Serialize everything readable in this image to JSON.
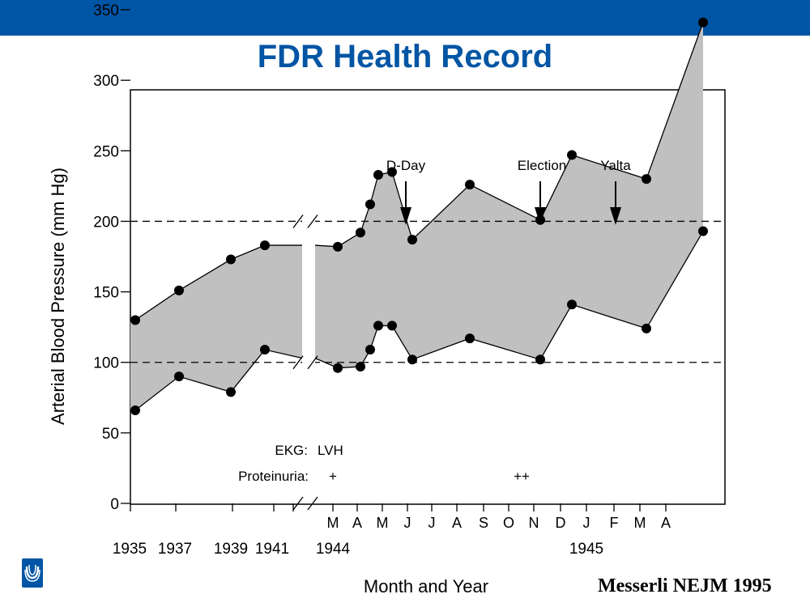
{
  "slide": {
    "title": "FDR Health Record",
    "citation": "Messerli NEJM 1995",
    "bar_color": "#0055a4",
    "title_color": "#0055a4"
  },
  "logo": {
    "icon": "university-logo-icon",
    "color": "#0055a4"
  },
  "chart_data": {
    "type": "area",
    "title": "",
    "xlabel": "Month and Year",
    "ylabel": "Arterial Blood Pressure (mm Hg)",
    "ylim": [
      0,
      350
    ],
    "yticks": [
      0,
      50,
      100,
      150,
      200,
      250,
      300,
      350
    ],
    "axis_break": true,
    "x_tick_labels": [
      "M",
      "A",
      "M",
      "J",
      "J",
      "A",
      "S",
      "O",
      "N",
      "D",
      "J",
      "F",
      "M",
      "A"
    ],
    "year_labels": [
      "1935",
      "1937",
      "1939",
      "1941",
      "1944",
      "1945"
    ],
    "reference_lines": [
      100,
      200
    ],
    "fill_color": "#c0c0c0",
    "annotations": [
      "D-Day",
      "Election",
      "Yalta"
    ],
    "rows": [
      {
        "label": "EKG:",
        "value": "LVH"
      },
      {
        "label": "Proteinuria:",
        "value": "+"
      },
      {
        "label": "",
        "value": "++"
      }
    ],
    "series": [
      {
        "values": [
          130,
          151,
          173,
          183,
          182,
          192,
          212,
          233,
          235,
          187,
          226,
          201,
          247,
          230,
          341
        ]
      },
      {
        "values": [
          66,
          90,
          79,
          109,
          96,
          97,
          109,
          126,
          126,
          102,
          117,
          102,
          141,
          124,
          193
        ]
      }
    ]
  }
}
